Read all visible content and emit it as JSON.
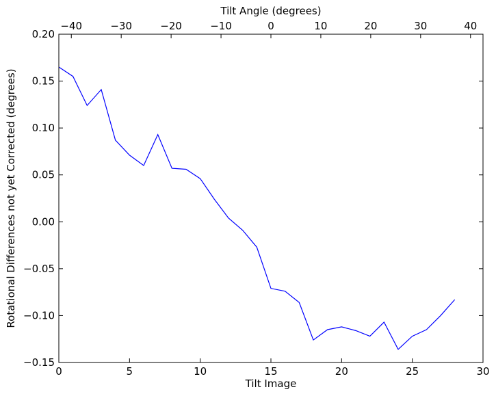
{
  "chart_data": {
    "type": "line",
    "xlabel": "Tilt Image",
    "ylabel": "Rotational Differences not yet Corrected (degrees)",
    "top_xlabel": "Tilt Angle (degrees)",
    "xlim": [
      0,
      30
    ],
    "ylim": [
      -0.15,
      0.2
    ],
    "top_xlim": [
      -42.5,
      42.5
    ],
    "grid": false,
    "line_color": "#0000ff",
    "x_ticks": [
      {
        "value": 0,
        "label": "0"
      },
      {
        "value": 5,
        "label": "5"
      },
      {
        "value": 10,
        "label": "10"
      },
      {
        "value": 15,
        "label": "15"
      },
      {
        "value": 20,
        "label": "20"
      },
      {
        "value": 25,
        "label": "25"
      },
      {
        "value": 30,
        "label": "30"
      }
    ],
    "y_ticks": [
      {
        "value": 0.2,
        "label": "0.20"
      },
      {
        "value": 0.15,
        "label": "0.15"
      },
      {
        "value": 0.1,
        "label": "0.10"
      },
      {
        "value": 0.05,
        "label": "0.05"
      },
      {
        "value": 0.0,
        "label": "0.00"
      },
      {
        "value": -0.05,
        "label": "−0.05"
      },
      {
        "value": -0.1,
        "label": "−0.10"
      },
      {
        "value": -0.15,
        "label": "−0.15"
      }
    ],
    "top_x_ticks": [
      {
        "value": -40,
        "label": "−40"
      },
      {
        "value": -30,
        "label": "−30"
      },
      {
        "value": -20,
        "label": "−20"
      },
      {
        "value": -10,
        "label": "−10"
      },
      {
        "value": 0,
        "label": "0"
      },
      {
        "value": 10,
        "label": "10"
      },
      {
        "value": 20,
        "label": "20"
      },
      {
        "value": 30,
        "label": "30"
      },
      {
        "value": 40,
        "label": "40"
      }
    ],
    "series": [
      {
        "x": [
          0,
          1,
          2,
          3,
          4,
          5,
          6,
          7,
          8,
          9,
          10,
          11,
          12,
          13,
          14,
          15,
          16,
          17,
          18,
          19,
          20,
          21,
          22,
          23,
          24,
          25,
          26,
          27,
          28
        ],
        "values": [
          0.165,
          0.155,
          0.124,
          0.141,
          0.087,
          0.071,
          0.06,
          0.093,
          0.057,
          0.056,
          0.046,
          0.024,
          0.004,
          -0.009,
          -0.027,
          -0.071,
          -0.074,
          -0.086,
          -0.126,
          -0.115,
          -0.112,
          -0.116,
          -0.122,
          -0.107,
          -0.136,
          -0.122,
          -0.115,
          -0.1,
          -0.083
        ]
      }
    ]
  }
}
